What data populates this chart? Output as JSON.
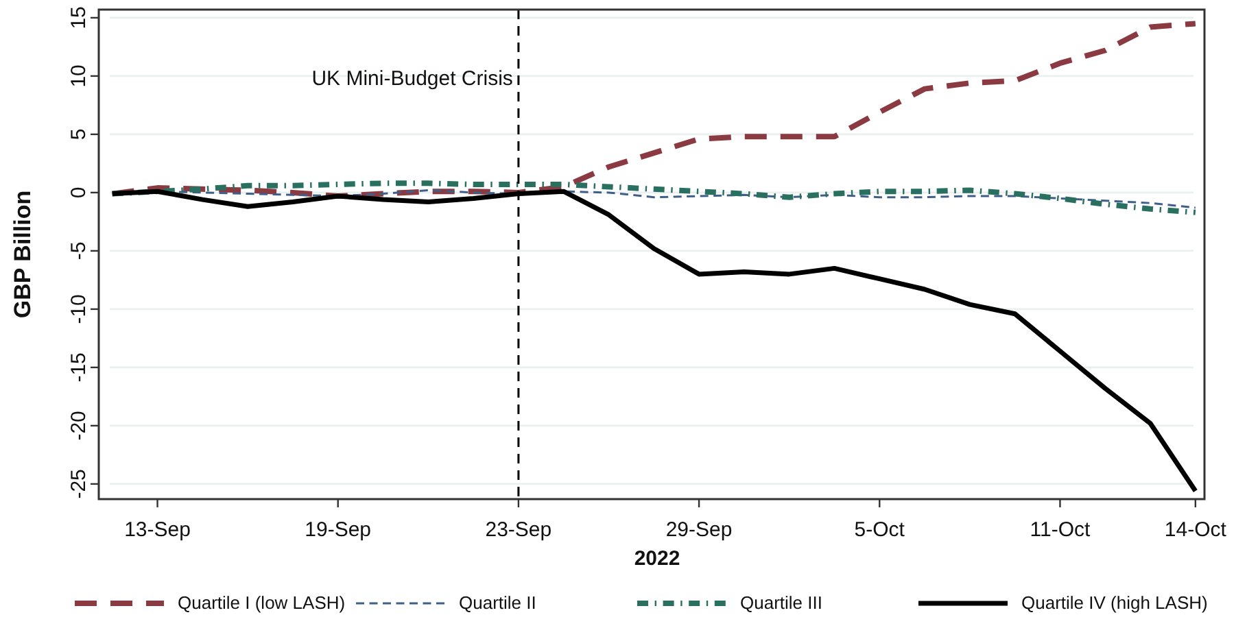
{
  "chart_data": {
    "type": "line",
    "xlabel": "2022",
    "ylabel": "GBP Billion",
    "categories": [
      null,
      "13-Sep",
      null,
      null,
      null,
      "19-Sep",
      null,
      null,
      null,
      "23-Sep",
      null,
      null,
      null,
      "29-Sep",
      null,
      null,
      null,
      "5-Oct",
      null,
      null,
      null,
      "11-Oct",
      null,
      null,
      "14-Oct"
    ],
    "ylim": [
      -26.3,
      15.7
    ],
    "yticks": [
      -25,
      -20,
      -15,
      -10,
      -5,
      0,
      5,
      10,
      15
    ],
    "grid": "y",
    "legend": "bottom",
    "ref_lines": [
      {
        "axis": "x",
        "value": "23-Sep",
        "label": "UK Mini-Budget Crisis",
        "line_style": "dashed",
        "color": "#000000"
      }
    ],
    "series": [
      {
        "name": "Quartile I (low LASH)",
        "color": "#8b3a42",
        "line_style": "dashed",
        "values": [
          -0.1,
          0.4,
          0.3,
          0.2,
          0,
          -0.3,
          -0.1,
          0.1,
          0.1,
          0,
          0.5,
          2.2,
          3.4,
          4.6,
          4.8,
          4.8,
          4.8,
          6.9,
          8.9,
          9.4,
          9.6,
          11.1,
          12.2,
          14.2,
          14.5
        ]
      },
      {
        "name": "Quartile II",
        "color": "#3e5f8a",
        "line_style": "dashed",
        "values": [
          -0.1,
          0.1,
          0,
          -0.1,
          -0.2,
          -0.3,
          -0.1,
          0.2,
          0,
          -0.1,
          0.1,
          0,
          -0.4,
          -0.3,
          -0.2,
          -0.4,
          -0.2,
          -0.4,
          -0.4,
          -0.3,
          -0.3,
          -0.5,
          -0.7,
          -0.9,
          -1.3
        ]
      },
      {
        "name": "Quartile III",
        "color": "#2a7060",
        "line_style": "dashed",
        "values": [
          -0.1,
          0.1,
          0.3,
          0.6,
          0.6,
          0.7,
          0.8,
          0.8,
          0.7,
          0.7,
          0.7,
          0.5,
          0.3,
          0.1,
          -0.1,
          -0.4,
          -0.1,
          0.1,
          0.1,
          0.2,
          -0.1,
          -0.5,
          -1.0,
          -1.4,
          -1.7
        ]
      },
      {
        "name": "Quartile IV (high LASH)",
        "color": "#000000",
        "line_style": "solid",
        "values": [
          -0.1,
          0.1,
          -0.6,
          -1.2,
          -0.8,
          -0.3,
          -0.6,
          -0.8,
          -0.5,
          -0.1,
          0.1,
          -1.9,
          -4.8,
          -7.0,
          -6.8,
          -7.0,
          -6.5,
          -7.4,
          -8.3,
          -9.6,
          -10.4,
          -13.6,
          -16.8,
          -19.8,
          -25.6
        ]
      }
    ]
  }
}
